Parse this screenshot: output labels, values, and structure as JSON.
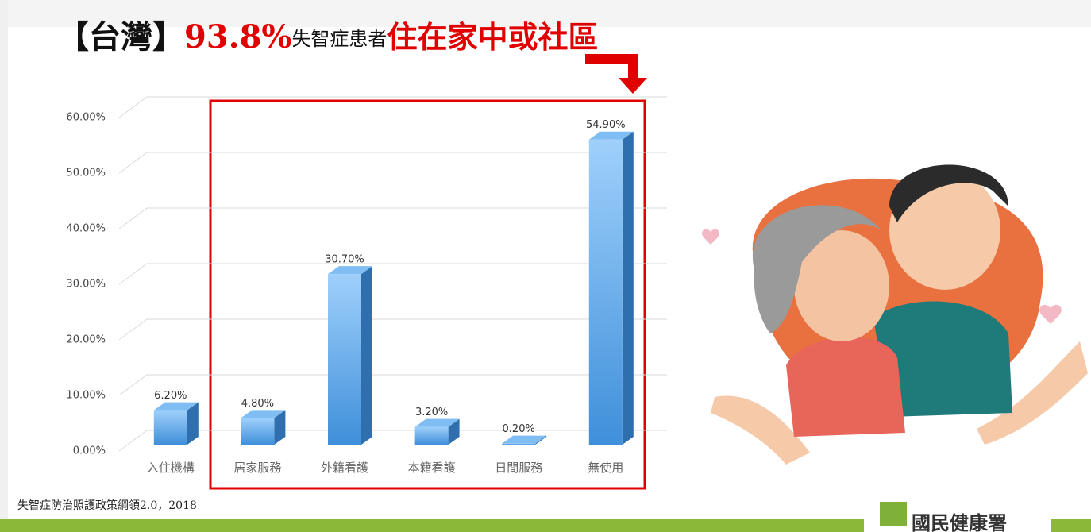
{
  "slide": {
    "region": "【台灣】",
    "percent": "93.8%",
    "subject": "失智症患者",
    "place": "住在家中或社區",
    "source": "失智症防治照護政策綱領2.0，2018",
    "logo": "國民健康署"
  },
  "chart_data": {
    "type": "bar",
    "categories": [
      "入住機構",
      "居家服務",
      "外籍看護",
      "本籍看護",
      "日間服務",
      "無使用"
    ],
    "values": [
      6.2,
      4.8,
      30.7,
      3.2,
      0.2,
      54.9
    ],
    "value_labels": [
      "6.20%",
      "4.80%",
      "30.70%",
      "3.20%",
      "0.20%",
      "54.90%"
    ],
    "color": "#5aa7e8",
    "ylim": [
      0,
      60
    ],
    "yticks": [
      {
        "value": 0,
        "label": "0.00%"
      },
      {
        "value": 10,
        "label": "10.00%"
      },
      {
        "value": 20,
        "label": "20.00%"
      },
      {
        "value": 30,
        "label": "30.00%"
      },
      {
        "value": 40,
        "label": "40.00%"
      },
      {
        "value": 50,
        "label": "50.00%"
      },
      {
        "value": 60,
        "label": "60.00%"
      }
    ],
    "grid": true
  }
}
